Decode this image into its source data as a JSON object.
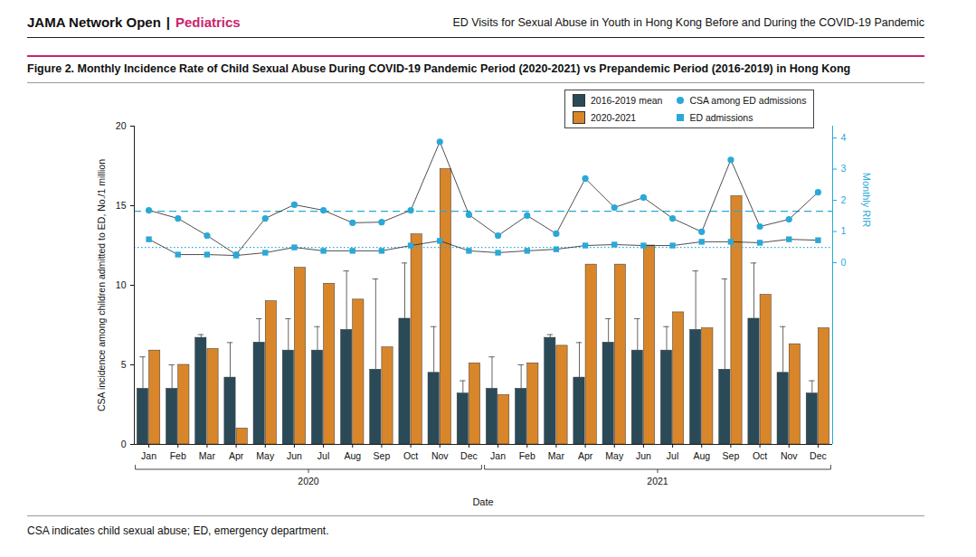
{
  "header": {
    "left": [
      "JAMA Network Open",
      "|",
      "Pediatrics"
    ],
    "right": "ED Visits for Sexual Abuse in Youth in Hong Kong Before and During the COVID-19 Pandemic"
  },
  "chart_data": {
    "type": "bar",
    "title": "Figure 2. Monthly Incidence Rate of Child Sexual Abuse During COVID-19 Pandemic Period (2020-2021) vs Prepandemic Period (2016-2019) in Hong Kong",
    "caption": "CSA indicates child sexual abuse; ED, emergency department.",
    "xlabel": "Date",
    "ylabel": "CSA incidence among children admitted to ED, No./1 million",
    "y2label": "Monthly RIR",
    "categories": [
      "Jan",
      "Feb",
      "Mar",
      "Apr",
      "May",
      "Jun",
      "Jul",
      "Aug",
      "Sep",
      "Oct",
      "Nov",
      "Dec",
      "Jan",
      "Feb",
      "Mar",
      "Apr",
      "May",
      "Jun",
      "Jul",
      "Aug",
      "Sep",
      "Oct",
      "Nov",
      "Dec"
    ],
    "year_groups": [
      "2020",
      "2021"
    ],
    "ylim": [
      0,
      20
    ],
    "yticks": [
      0,
      5,
      10,
      15,
      20
    ],
    "y2lim": [
      -5.83,
      4.38
    ],
    "y2ticks": [
      0,
      1,
      2,
      3,
      4
    ],
    "legend": "top-right",
    "series": [
      {
        "name": "2016-2019 mean",
        "type": "bar",
        "color": "#2b4a58",
        "values": [
          3.5,
          3.5,
          6.7,
          4.2,
          6.4,
          5.9,
          5.9,
          7.2,
          4.7,
          7.9,
          4.5,
          3.2,
          3.5,
          3.5,
          6.7,
          4.2,
          6.4,
          5.9,
          5.9,
          7.2,
          4.7,
          7.9,
          4.5,
          3.2
        ],
        "errors": [
          2.0,
          1.5,
          0.2,
          2.2,
          1.5,
          2.0,
          1.5,
          3.7,
          5.7,
          3.5,
          2.9,
          0.8,
          2.0,
          1.5,
          0.2,
          2.2,
          1.5,
          2.0,
          1.5,
          3.7,
          5.7,
          3.5,
          2.9,
          0.8
        ]
      },
      {
        "name": "2020-2021",
        "type": "bar",
        "color": "#d9862b",
        "values": [
          5.9,
          5.0,
          6.0,
          1.0,
          9.0,
          11.1,
          10.1,
          9.1,
          6.1,
          13.2,
          17.3,
          5.1,
          3.1,
          5.1,
          6.2,
          11.3,
          11.3,
          12.5,
          8.3,
          7.3,
          15.6,
          9.4,
          6.3,
          7.3
        ]
      },
      {
        "name": "CSA among ED admissions",
        "type": "line",
        "axis": "y2",
        "marker": "circle",
        "color": "#29a9d8",
        "values": [
          1.68,
          1.42,
          0.87,
          0.26,
          1.42,
          1.86,
          1.68,
          1.28,
          1.3,
          1.68,
          3.88,
          1.54,
          0.87,
          1.51,
          0.93,
          2.7,
          1.77,
          2.09,
          1.42,
          0.99,
          3.3,
          1.16,
          1.39,
          2.26
        ]
      },
      {
        "name": "ED admissions",
        "type": "line",
        "axis": "y2",
        "marker": "square",
        "color": "#29a9d8",
        "values": [
          0.75,
          0.26,
          0.26,
          0.23,
          0.32,
          0.49,
          0.38,
          0.38,
          0.38,
          0.55,
          0.7,
          0.38,
          0.32,
          0.38,
          0.43,
          0.55,
          0.58,
          0.55,
          0.55,
          0.67,
          0.67,
          0.64,
          0.75,
          0.72
        ]
      }
    ],
    "reference_lines": [
      {
        "value": 1.65,
        "axis": "y2",
        "line_style": "dashed",
        "color": "#29a9d8"
      },
      {
        "value": 0.49,
        "axis": "y2",
        "line_style": "dotted",
        "color": "#29a9d8"
      }
    ]
  }
}
